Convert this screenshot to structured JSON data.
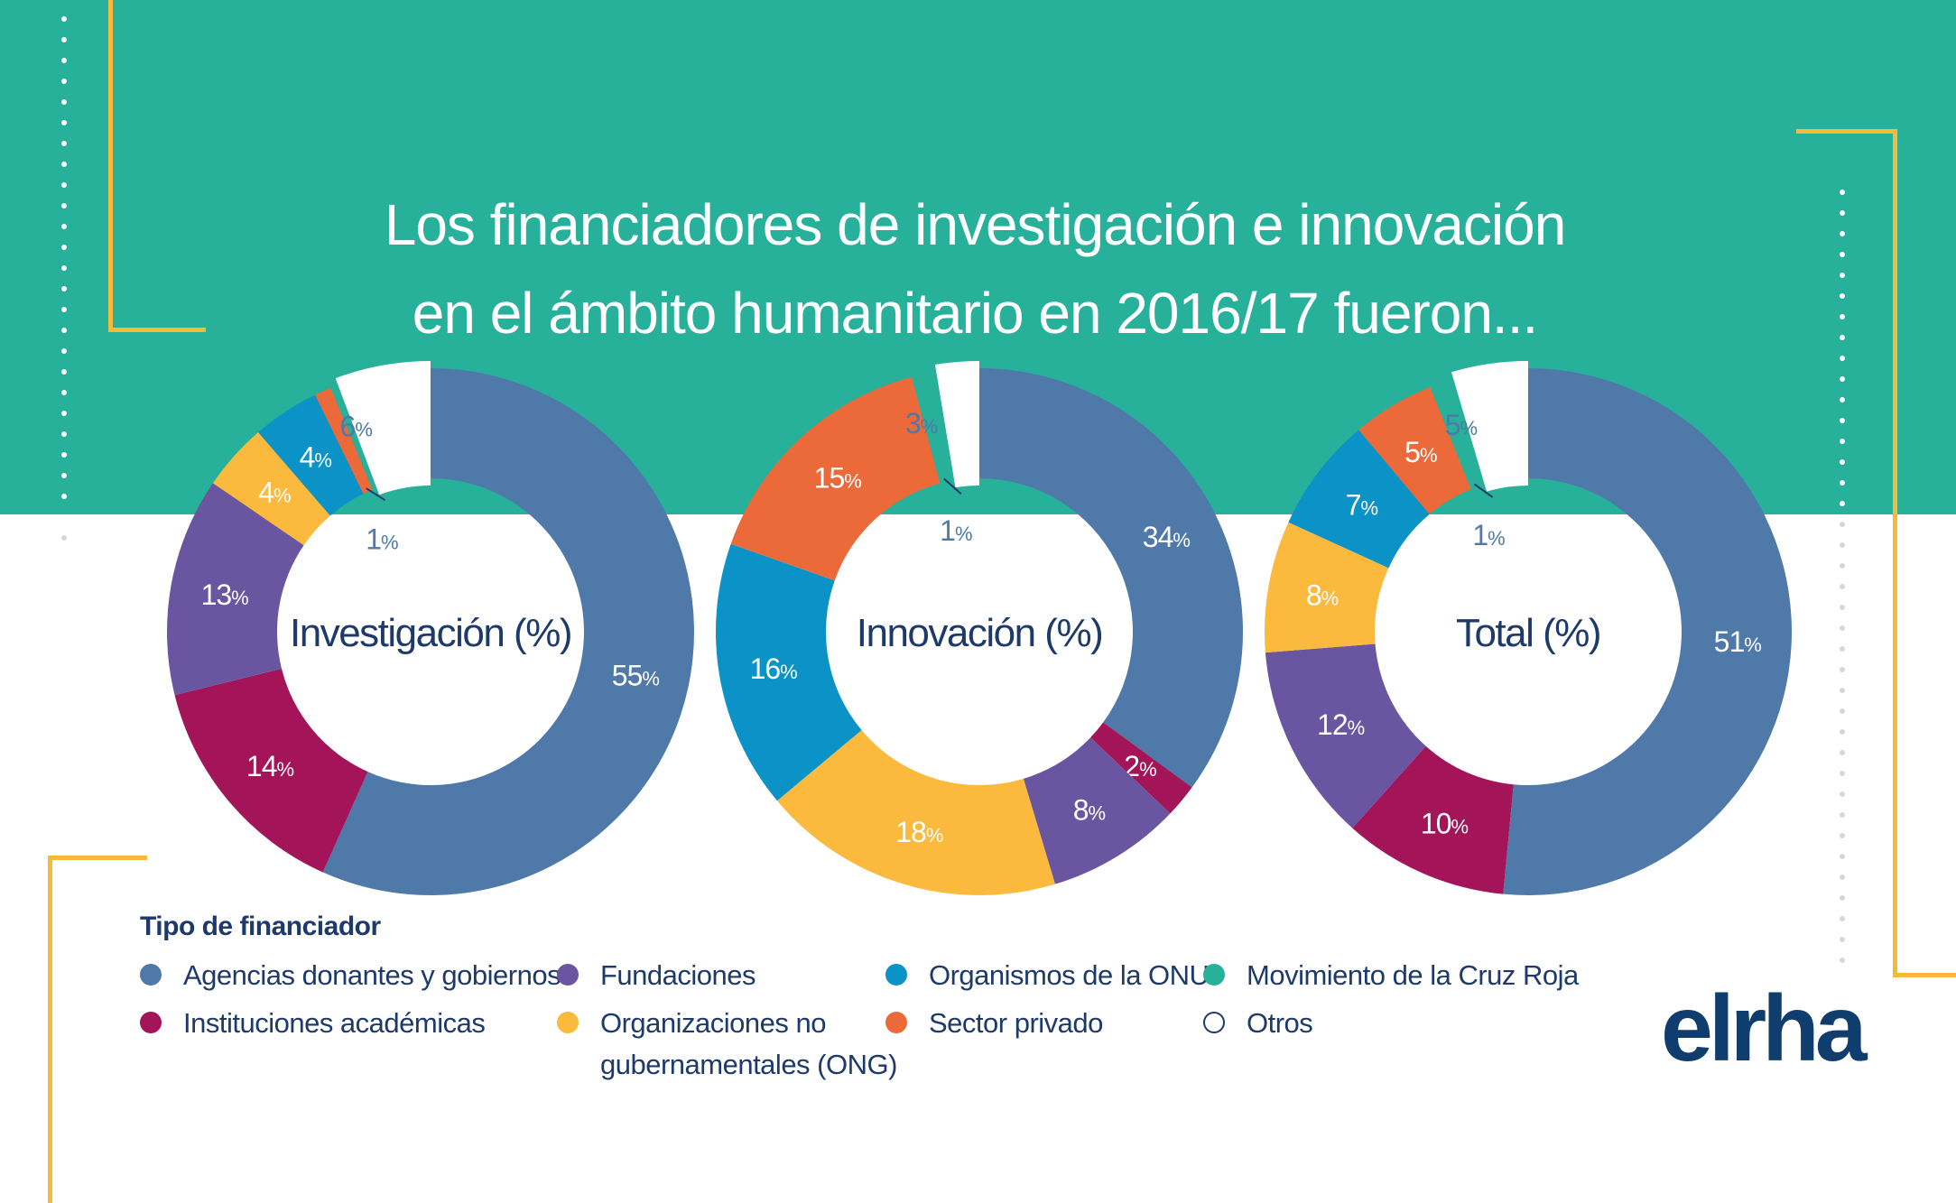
{
  "title_line1": "Los financiadores de investigación e innovación",
  "title_line2": "en el ámbito humanitario en 2016/17 fueron...",
  "legend": {
    "title": "Tipo de financiador",
    "items": [
      {
        "key": "agencias",
        "label": "Agencias donantes y gobiernos",
        "color": "#4f79a8"
      },
      {
        "key": "fundaciones",
        "label": "Fundaciones",
        "color": "#6a55a0"
      },
      {
        "key": "onu",
        "label": "Organismos de la ONU",
        "color": "#0b93c7"
      },
      {
        "key": "cruzroja",
        "label": "Movimiento de la Cruz Roja",
        "color": "#27b09a"
      },
      {
        "key": "academicas",
        "label": "Instituciones académicas",
        "color": "#a31459"
      },
      {
        "key": "ong",
        "label": "Organizaciones no gubernamentales (ONG)",
        "color": "#fbb93e"
      },
      {
        "key": "privado",
        "label": "Sector privado",
        "color": "#ec6a3a"
      },
      {
        "key": "otros",
        "label": "Otros",
        "color": "#ffffff"
      }
    ]
  },
  "logo": "elrha",
  "chart_data": [
    {
      "type": "pie",
      "title": "Investigación (%)",
      "slices": [
        {
          "category": "Agencias donantes y gobiernos",
          "value": 55,
          "label": "55"
        },
        {
          "category": "Instituciones académicas",
          "value": 14,
          "label": "14"
        },
        {
          "category": "Fundaciones",
          "value": 13,
          "label": "13"
        },
        {
          "category": "Organizaciones no gubernamentales (ONG)",
          "value": 4,
          "label": "4"
        },
        {
          "category": "Organismos de la ONU",
          "value": 4,
          "label": "4"
        },
        {
          "category": "Sector privado",
          "value": 1,
          "label": "1"
        },
        {
          "category": "Otros",
          "value": 6,
          "label": "6"
        }
      ]
    },
    {
      "type": "pie",
      "title": "Innovación (%)",
      "slices": [
        {
          "category": "Agencias donantes y gobiernos",
          "value": 34,
          "label": "34"
        },
        {
          "category": "Instituciones académicas",
          "value": 2,
          "label": "2"
        },
        {
          "category": "Fundaciones",
          "value": 8,
          "label": "8"
        },
        {
          "category": "Organizaciones no gubernamentales (ONG)",
          "value": 18,
          "label": "18"
        },
        {
          "category": "Organismos de la ONU",
          "value": 16,
          "label": "16"
        },
        {
          "category": "Sector privado",
          "value": 15,
          "label": "15"
        },
        {
          "category": "Movimiento de la Cruz Roja",
          "value": 1,
          "label": "1"
        },
        {
          "category": "Otros",
          "value": 3,
          "label": "3"
        }
      ]
    },
    {
      "type": "pie",
      "title": "Total (%)",
      "slices": [
        {
          "category": "Agencias donantes y gobiernos",
          "value": 51,
          "label": "51"
        },
        {
          "category": "Instituciones académicas",
          "value": 10,
          "label": "10"
        },
        {
          "category": "Fundaciones",
          "value": 12,
          "label": "12"
        },
        {
          "category": "Organizaciones no gubernamentales (ONG)",
          "value": 8,
          "label": "8"
        },
        {
          "category": "Organismos de la ONU",
          "value": 7,
          "label": "7"
        },
        {
          "category": "Sector privado",
          "value": 5,
          "label": "5"
        },
        {
          "category": "Movimiento de la Cruz Roja",
          "value": 1,
          "label": "1"
        },
        {
          "category": "Otros",
          "value": 5,
          "label": "5"
        }
      ]
    }
  ]
}
